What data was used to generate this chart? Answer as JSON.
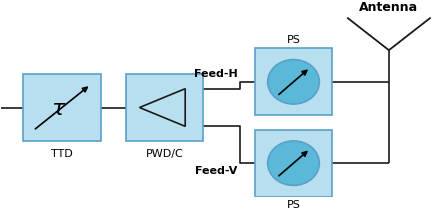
{
  "bg_color": "#ffffff",
  "box_fill": "#b8dff0",
  "box_edge": "#5aa0c8",
  "line_color": "#1a1a1a",
  "circle_fill": "#5ab8d8",
  "circle_edge": "#5aa0c8",
  "ttd_label": "TTD",
  "pwd_label": "PWD/C",
  "ps_h_label": "PS",
  "ps_v_label": "PS",
  "feed_h_label": "Feed-H",
  "feed_v_label": "Feed-V",
  "antenna_label": "Antenna",
  "tau_symbol": "τ",
  "figsize": [
    4.35,
    2.11
  ],
  "dpi": 100
}
